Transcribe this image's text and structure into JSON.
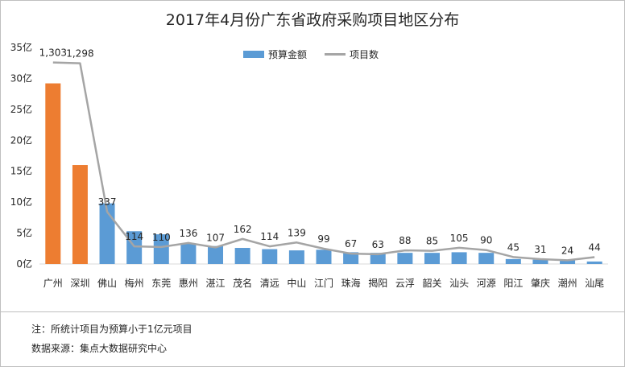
{
  "chart_data": {
    "type": "bar",
    "title": "2017年4月份广东省政府采购项目地区分布",
    "categories": [
      "广州",
      "深圳",
      "佛山",
      "梅州",
      "东莞",
      "惠州",
      "湛江",
      "茂名",
      "清远",
      "中山",
      "江门",
      "珠海",
      "揭阳",
      "云浮",
      "韶关",
      "汕头",
      "河源",
      "阳江",
      "肇庆",
      "潮州",
      "汕尾"
    ],
    "series": [
      {
        "name": "预算金额",
        "type": "bar",
        "unit": "亿",
        "values": [
          29.2,
          16.0,
          9.8,
          5.3,
          4.8,
          3.3,
          2.9,
          2.6,
          2.4,
          2.2,
          2.3,
          1.9,
          1.8,
          1.8,
          1.8,
          1.9,
          1.8,
          0.8,
          0.7,
          0.6,
          0.4
        ],
        "highlight_indices": [
          0,
          1
        ]
      },
      {
        "name": "项目数",
        "type": "line",
        "values": [
          1303,
          1298,
          337,
          114,
          110,
          136,
          107,
          162,
          114,
          139,
          99,
          67,
          63,
          88,
          85,
          105,
          90,
          45,
          31,
          24,
          44
        ],
        "labels": [
          "1,303",
          "1,298",
          "337",
          "114",
          "110",
          "136",
          "107",
          "162",
          "114",
          "139",
          "99",
          "67",
          "63",
          "88",
          "85",
          "105",
          "90",
          "45",
          "31",
          "24",
          "44"
        ]
      }
    ],
    "ylim": [
      0,
      35
    ],
    "yticks": [
      0,
      5,
      10,
      15,
      20,
      25,
      30,
      35
    ],
    "ytick_labels": [
      "0亿",
      "5亿",
      "10亿",
      "15亿",
      "20亿",
      "25亿",
      "30亿",
      "35亿"
    ],
    "line_ylim": [
      0,
      1400
    ],
    "xlabel": "",
    "ylabel": "",
    "legend": "top-right",
    "colors": {
      "bar": "#5b9bd5",
      "bar_highlight": "#ed7d31",
      "line": "#a5a5a5"
    }
  },
  "notes": {
    "note1": "注：所统计项目为预算小于1亿元项目",
    "note2": "数据来源：集点大数据研究中心"
  }
}
